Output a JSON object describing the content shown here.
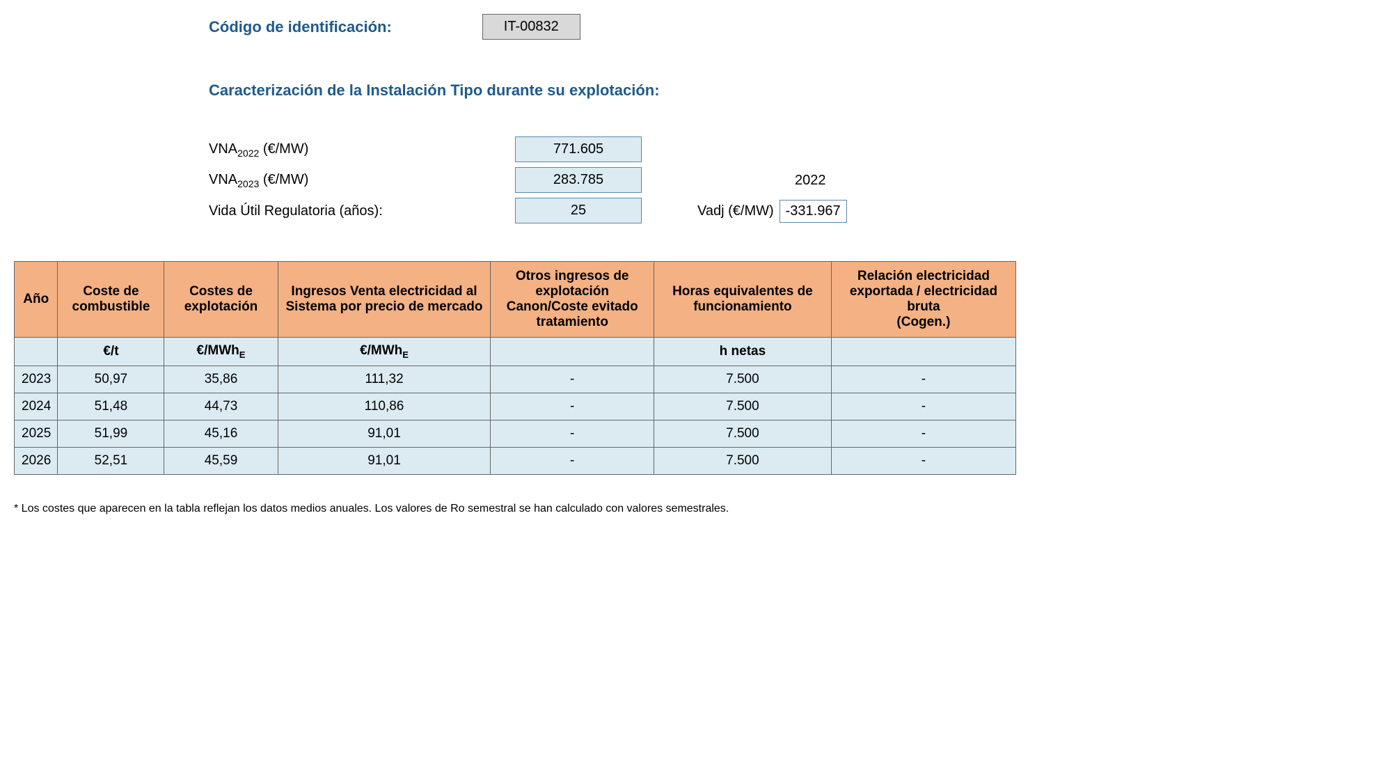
{
  "header": {
    "code_label": "Código de identificación:",
    "code_value": "IT-00832",
    "caract_title": "Caracterización de la Instalación Tipo durante su explotación:"
  },
  "params": {
    "vna2022_label_prefix": "VNA",
    "vna2022_sub": "2022",
    "vna_unit": " (€/MW)",
    "vna2022_value": "771.605",
    "vna2023_sub": "2023",
    "vna2023_value": "283.785",
    "vida_label": "Vida Útil Regulatoria (años):",
    "vida_value": "25",
    "side_year": "2022",
    "vadj_label": "Vadj (€/MW)",
    "vadj_value": "-331.967"
  },
  "table": {
    "headers": {
      "anio": "Año",
      "coste_comb": "Coste de combustible",
      "costes_expl": "Costes de explotación",
      "ingresos_venta": "Ingresos Venta electricidad al Sistema por precio de mercado",
      "otros_ingresos": "Otros ingresos de explotación Canon/Coste evitado tratamiento",
      "horas_eq": "Horas equivalentes de funcionamiento",
      "relacion": "Relación electricidad exportada / electricidad bruta\n(Cogen.)"
    },
    "units": {
      "anio": "",
      "coste_comb": "€/t",
      "costes_expl_prefix": "€/MWh",
      "ingresos_venta_prefix": "€/MWh",
      "otros_ingresos": "",
      "horas_eq": "h netas",
      "relacion": ""
    },
    "col_widths": [
      "60px",
      "150px",
      "160px",
      "300px",
      "230px",
      "250px",
      "260px"
    ],
    "header_bg": "#f4b183",
    "cell_bg": "#dcebf2",
    "border_color": "#666",
    "rows": [
      {
        "anio": "2023",
        "coste_comb": "50,97",
        "costes_expl": "35,86",
        "ingresos_venta": "111,32",
        "otros_ingresos": "-",
        "horas_eq": "7.500",
        "relacion": "-"
      },
      {
        "anio": "2024",
        "coste_comb": "51,48",
        "costes_expl": "44,73",
        "ingresos_venta": "110,86",
        "otros_ingresos": "-",
        "horas_eq": "7.500",
        "relacion": "-"
      },
      {
        "anio": "2025",
        "coste_comb": "51,99",
        "costes_expl": "45,16",
        "ingresos_venta": "91,01",
        "otros_ingresos": "-",
        "horas_eq": "7.500",
        "relacion": "-"
      },
      {
        "anio": "2026",
        "coste_comb": "52,51",
        "costes_expl": "45,59",
        "ingresos_venta": "91,01",
        "otros_ingresos": "-",
        "horas_eq": "7.500",
        "relacion": "-"
      }
    ]
  },
  "footnote": "* Los costes que aparecen en la tabla reflejan los datos medios anuales. Los valores de Ro semestral se han calculado con valores semestrales."
}
